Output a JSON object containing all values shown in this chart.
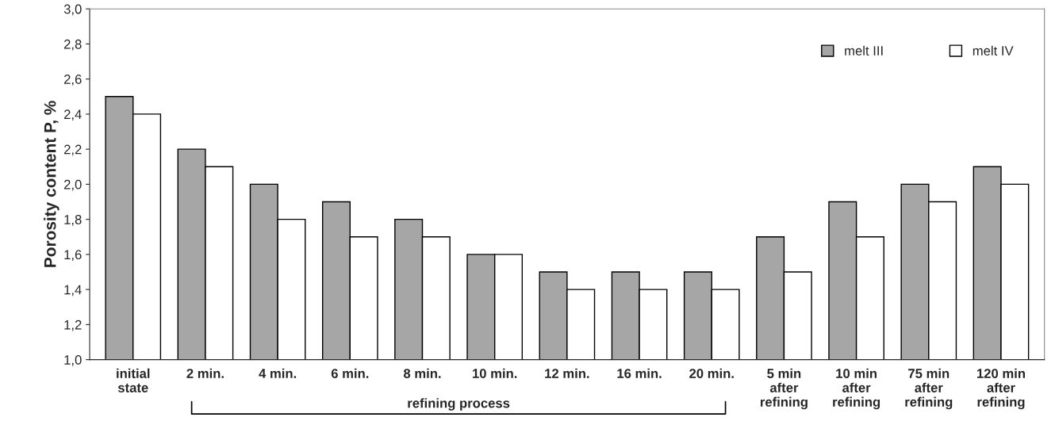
{
  "chart_data": {
    "type": "bar",
    "ylabel": "Porosity content P, %",
    "categories": [
      "initial\nstate",
      "2 min.",
      "4 min.",
      "6 min.",
      "8 min.",
      "10 min.",
      "12 min.",
      "16 min.",
      "20 min.",
      "5 min\nafter\nrefining",
      "10 min\nafter\nrefining",
      "75 min\nafter\nrefining",
      "120 min\nafter\nrefining"
    ],
    "series": [
      {
        "name": "melt III",
        "color": "#a6a6a6",
        "values": [
          2.5,
          2.2,
          2.0,
          1.9,
          1.8,
          1.6,
          1.5,
          1.5,
          1.5,
          1.7,
          1.9,
          2.0,
          2.1
        ]
      },
      {
        "name": "melt IV",
        "color": "#ffffff",
        "values": [
          2.4,
          2.1,
          1.8,
          1.7,
          1.7,
          1.6,
          1.4,
          1.4,
          1.4,
          1.5,
          1.7,
          1.9,
          2.0
        ]
      }
    ],
    "ylim": [
      1.0,
      3.0
    ],
    "yticks": [
      {
        "value": 1.0,
        "label": "1,0"
      },
      {
        "value": 1.2,
        "label": "1,2"
      },
      {
        "value": 1.4,
        "label": "1,4"
      },
      {
        "value": 1.6,
        "label": "1,6"
      },
      {
        "value": 1.8,
        "label": "1,8"
      },
      {
        "value": 2.0,
        "label": "2,0"
      },
      {
        "value": 2.2,
        "label": "2,2"
      },
      {
        "value": 2.4,
        "label": "2,4"
      },
      {
        "value": 2.6,
        "label": "2,6"
      },
      {
        "value": 2.8,
        "label": "2,8"
      },
      {
        "value": 3.0,
        "label": "3,0"
      }
    ],
    "annotations": [
      "refining process"
    ],
    "grid": false,
    "legend": "top right"
  }
}
